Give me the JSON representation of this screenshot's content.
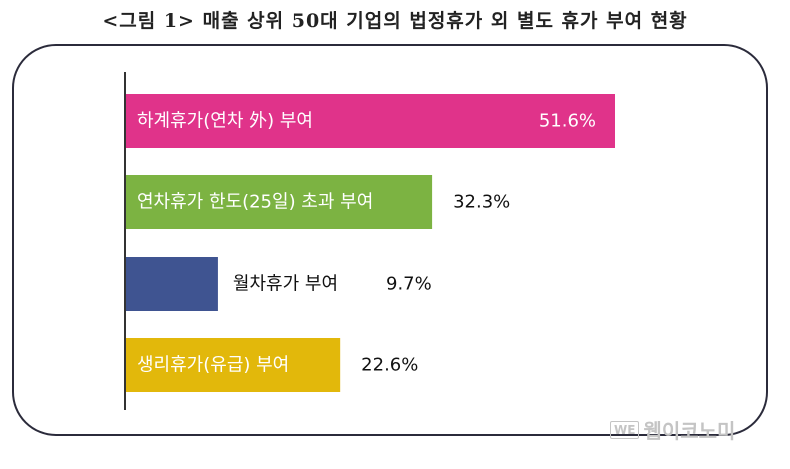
{
  "title": "<그림 1> 매출 상위 50대 기업의 법정휴가 외 별도 휴가 부여 현황",
  "watermark": {
    "logo": "WE",
    "text": "웹이코노미"
  },
  "colors": {
    "bar1": "#e0338a",
    "bar2": "#7cb342",
    "bar3": "#3f5491",
    "bar4": "#e2b80b",
    "axis": "#333333",
    "frame": "#2b2b3b"
  },
  "chart_data": {
    "type": "bar",
    "orientation": "horizontal",
    "categories": [
      "하계휴가(연차 外) 부여",
      "연차휴가 한도(25일) 초과 부여",
      "월차휴가 부여",
      "생리휴가(유급) 부여"
    ],
    "values": [
      51.6,
      32.3,
      9.7,
      22.6
    ],
    "value_labels": [
      "51.6%",
      "32.3%",
      "9.7%",
      "22.6%"
    ],
    "unit": "%",
    "xlim": [
      0,
      51.6
    ],
    "grid": false,
    "legend": "none"
  }
}
